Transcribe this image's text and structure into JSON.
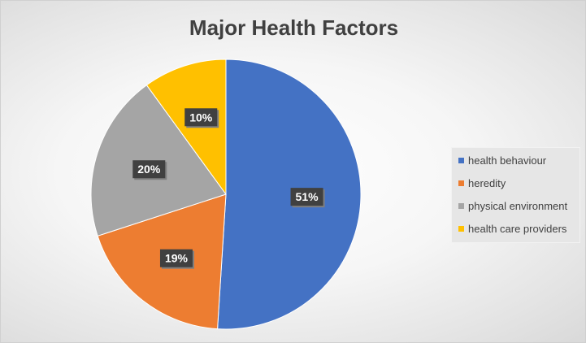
{
  "chart_data": {
    "type": "pie",
    "title": "Major Health Factors",
    "slices": [
      {
        "label": "health behaviour",
        "value": 51,
        "data_label": "51%",
        "color": "#4472C4"
      },
      {
        "label": "heredity",
        "value": 19,
        "data_label": "19%",
        "color": "#ED7D31"
      },
      {
        "label": "physical environment",
        "value": 20,
        "data_label": "20%",
        "color": "#A5A5A5"
      },
      {
        "label": "health care providers",
        "value": 10,
        "data_label": "10%",
        "color": "#FFC000"
      }
    ],
    "legend_position": "right",
    "start_angle": "top",
    "direction": "clockwise"
  }
}
